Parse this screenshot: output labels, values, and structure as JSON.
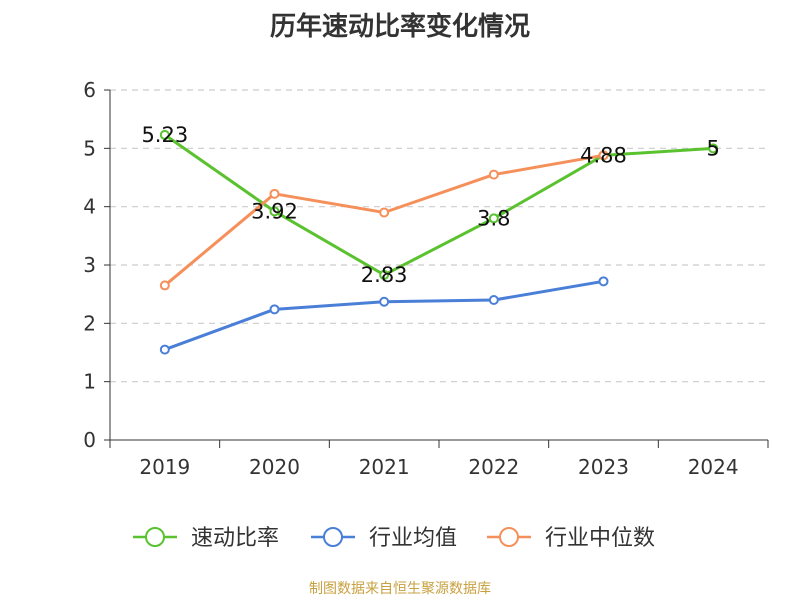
{
  "title": "历年速动比率变化情况",
  "source": "制图数据来自恒生聚源数据库",
  "chart_data": {
    "type": "line",
    "categories": [
      "2019",
      "2020",
      "2021",
      "2022",
      "2023",
      "2024"
    ],
    "ylim": [
      0,
      6
    ],
    "yticks": [
      0,
      1,
      2,
      3,
      4,
      5,
      6
    ],
    "grid": true,
    "legend_position": "bottom",
    "series": [
      {
        "name": "速动比率",
        "color": "#5ac22f",
        "values": [
          5.23,
          3.92,
          2.83,
          3.8,
          4.88,
          5
        ],
        "labels": [
          "5.23",
          "3.92",
          "2.83",
          "3.8",
          "4.88",
          "5"
        ]
      },
      {
        "name": "行业均值",
        "color": "#4a7fd8",
        "values": [
          1.55,
          2.24,
          2.37,
          2.4,
          2.72,
          null
        ]
      },
      {
        "name": "行业中位数",
        "color": "#f5905a",
        "values": [
          2.65,
          4.22,
          3.9,
          4.55,
          4.88,
          null
        ]
      }
    ]
  }
}
